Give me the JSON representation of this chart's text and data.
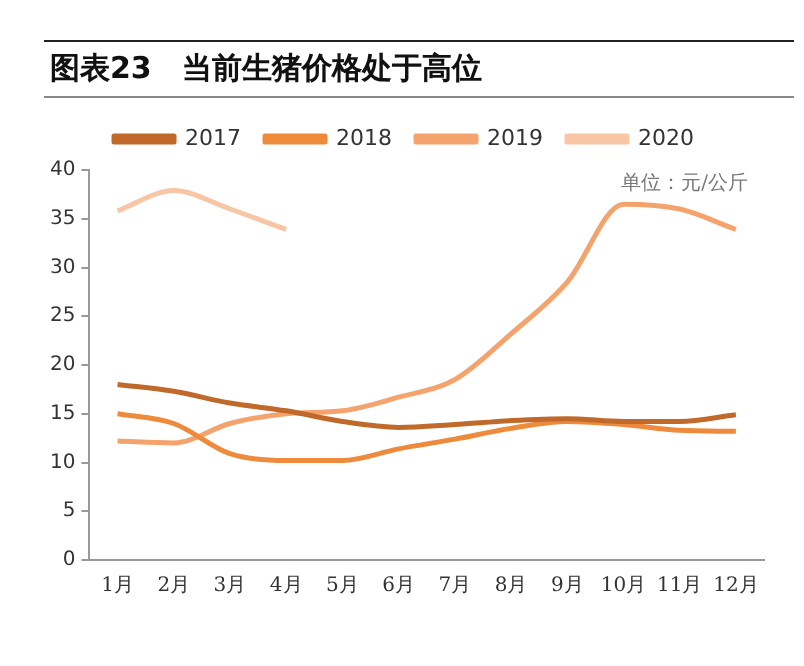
{
  "chart_data": {
    "type": "line",
    "title": "图表23　当前生猪价格处于高位",
    "annotations": [
      "单位：元/公斤"
    ],
    "categories": [
      "1月",
      "2月",
      "3月",
      "4月",
      "5月",
      "6月",
      "7月",
      "8月",
      "9月",
      "10月",
      "11月",
      "12月"
    ],
    "series": [
      {
        "name": "2017",
        "color": "#c0692a",
        "values": [
          18,
          17.3,
          16.1,
          15.3,
          14.2,
          13.6,
          13.9,
          14.3,
          14.5,
          14.2,
          14.2,
          14.9
        ]
      },
      {
        "name": "2018",
        "color": "#ed8a3c",
        "values": [
          15,
          14,
          10.9,
          10.2,
          10.2,
          11.4,
          12.4,
          13.5,
          14.2,
          13.9,
          13.3,
          13.2
        ]
      },
      {
        "name": "2019",
        "color": "#f5a36c",
        "values": [
          12.2,
          12,
          14,
          15,
          15.3,
          16.7,
          18.5,
          23.2,
          28.5,
          36.5,
          36,
          33.9
        ]
      },
      {
        "name": "2020",
        "color": "#f8c5a5",
        "values": [
          35.8,
          37.9,
          36,
          33.9,
          null,
          null,
          null,
          null,
          null,
          null,
          null,
          null
        ]
      }
    ],
    "ylim": [
      0,
      40
    ],
    "yticks": [
      0,
      5,
      10,
      15,
      20,
      25,
      30,
      35,
      40
    ],
    "grid": false,
    "legend": "top",
    "marker": "none",
    "line_style": "solid"
  }
}
